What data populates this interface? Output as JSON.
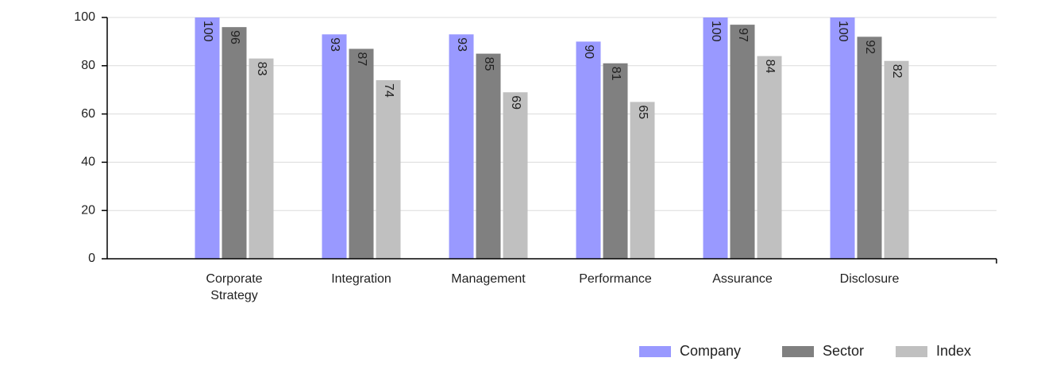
{
  "chart_data": {
    "type": "bar",
    "categories": [
      "Corporate Strategy",
      "Integration",
      "Management",
      "Performance",
      "Assurance",
      "Disclosure"
    ],
    "series": [
      {
        "name": "Company",
        "color": "#9999ff",
        "values": [
          100,
          93,
          93,
          90,
          100,
          100
        ]
      },
      {
        "name": "Sector",
        "color": "#808080",
        "values": [
          96,
          87,
          85,
          81,
          97,
          92
        ]
      },
      {
        "name": "Index",
        "color": "#c0c0c0",
        "values": [
          83,
          74,
          69,
          65,
          84,
          82
        ]
      }
    ],
    "ylim": [
      0,
      100
    ],
    "yticks": [
      0,
      20,
      40,
      60,
      80,
      100
    ],
    "grid": true,
    "legend": "bottom-right"
  }
}
